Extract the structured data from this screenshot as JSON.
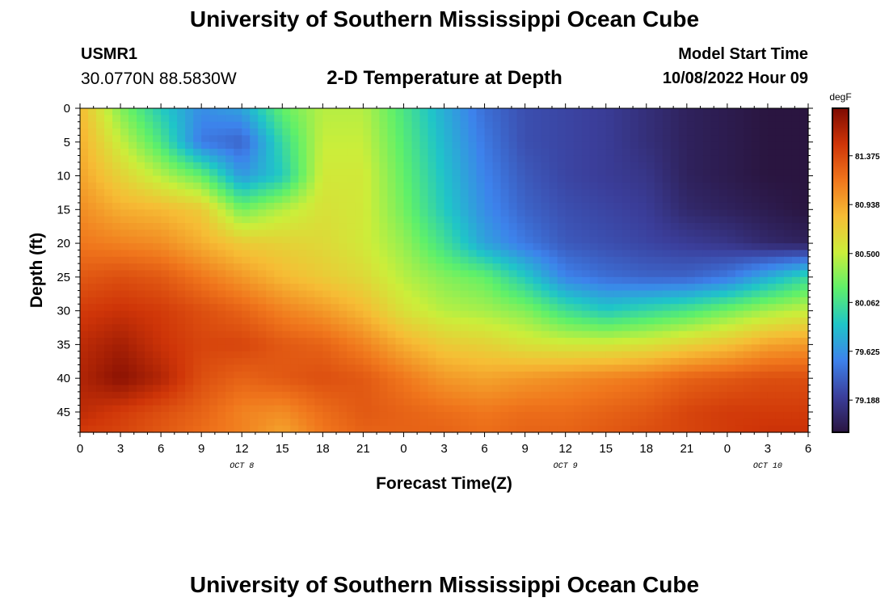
{
  "header": {
    "title": "University of Southern Mississippi Ocean Cube",
    "station_id": "USMR1",
    "station_coords": "30.0770N  88.5830W",
    "plot_title": "2-D Temperature at Depth",
    "model_start_label": "Model Start Time",
    "model_start_value": "10/08/2022 Hour 09"
  },
  "footer": {
    "title": "University of Southern Mississippi Ocean Cube"
  },
  "chart_data": {
    "type": "heatmap",
    "xlabel": "Forecast Time(Z)",
    "ylabel": "Depth (ft)",
    "xlim": [
      0,
      54
    ],
    "ylim": [
      0,
      48
    ],
    "y_inverted": true,
    "x_ticks": [
      "0",
      "3",
      "6",
      "9",
      "12",
      "15",
      "18",
      "21",
      "0",
      "3",
      "6",
      "9",
      "12",
      "15",
      "18",
      "21",
      "0",
      "3",
      "6"
    ],
    "x_date_labels": [
      {
        "label": "OCT 8",
        "at_hour": 12
      },
      {
        "label": "OCT 9",
        "at_hour": 36
      },
      {
        "label": "OCT 10",
        "at_hour": 51
      }
    ],
    "y_ticks": [
      0,
      5,
      10,
      15,
      20,
      25,
      30,
      35,
      40,
      45
    ],
    "colorbar": {
      "unit": "degF",
      "range": [
        78.9,
        81.8
      ],
      "ticks": [
        "81.375",
        "80.938",
        "80.500",
        "80.062",
        "79.625",
        "79.188"
      ],
      "colors": [
        "#2a1540",
        "#3b3f9c",
        "#3d82ec",
        "#1fc5c8",
        "#5ef06a",
        "#cbee3a",
        "#f6bd35",
        "#f0761c",
        "#cf3508",
        "#7e0b02"
      ]
    },
    "grid": false,
    "value_units": "degF",
    "hours": [
      0,
      3,
      6,
      9,
      12,
      15,
      18,
      21,
      24,
      27,
      30,
      33,
      36,
      39,
      42,
      45,
      48,
      51,
      54
    ],
    "depths": [
      0,
      5,
      10,
      15,
      20,
      25,
      30,
      35,
      40,
      45,
      48
    ],
    "values": [
      [
        80.85,
        80.3,
        79.9,
        79.6,
        79.7,
        80.2,
        80.45,
        80.45,
        80.1,
        79.75,
        79.45,
        79.3,
        79.25,
        79.2,
        79.1,
        79.0,
        78.95,
        78.9,
        78.9
      ],
      [
        80.9,
        80.5,
        80.1,
        79.5,
        79.4,
        80.0,
        80.5,
        80.5,
        80.15,
        79.8,
        79.5,
        79.3,
        79.25,
        79.2,
        79.1,
        79.0,
        78.95,
        78.9,
        78.9
      ],
      [
        80.95,
        80.7,
        80.45,
        80.2,
        79.65,
        79.9,
        80.55,
        80.55,
        80.2,
        79.85,
        79.55,
        79.35,
        79.25,
        79.2,
        79.15,
        79.0,
        78.95,
        78.9,
        78.9
      ],
      [
        81.05,
        80.9,
        80.85,
        80.75,
        80.25,
        80.45,
        80.6,
        80.55,
        80.25,
        79.9,
        79.6,
        79.4,
        79.3,
        79.25,
        79.2,
        79.05,
        79.0,
        78.95,
        78.9
      ],
      [
        81.15,
        81.1,
        81.05,
        80.9,
        80.75,
        80.7,
        80.65,
        80.55,
        80.35,
        80.05,
        79.7,
        79.5,
        79.35,
        79.3,
        79.25,
        79.2,
        79.15,
        79.05,
        79.0
      ],
      [
        81.3,
        81.35,
        81.3,
        81.15,
        81.0,
        80.85,
        80.75,
        80.65,
        80.45,
        80.3,
        80.2,
        79.9,
        79.55,
        79.45,
        79.4,
        79.4,
        79.5,
        79.75,
        80.0
      ],
      [
        81.45,
        81.5,
        81.45,
        81.35,
        81.25,
        81.1,
        81.0,
        80.85,
        80.6,
        80.45,
        80.4,
        80.3,
        80.05,
        79.9,
        80.0,
        80.1,
        80.25,
        80.4,
        80.5
      ],
      [
        81.55,
        81.65,
        81.5,
        81.4,
        81.4,
        81.3,
        81.25,
        81.1,
        80.9,
        80.75,
        80.7,
        80.6,
        80.55,
        80.55,
        80.6,
        80.7,
        80.8,
        80.95,
        81.0
      ],
      [
        81.6,
        81.75,
        81.6,
        81.35,
        81.25,
        81.3,
        81.35,
        81.3,
        81.15,
        81.0,
        80.95,
        81.0,
        81.05,
        81.1,
        81.15,
        81.25,
        81.3,
        81.35,
        81.35
      ],
      [
        81.55,
        81.45,
        81.35,
        81.25,
        81.1,
        81.05,
        81.2,
        81.3,
        81.25,
        81.2,
        81.15,
        81.2,
        81.2,
        81.25,
        81.3,
        81.4,
        81.45,
        81.45,
        81.45
      ],
      [
        81.45,
        81.4,
        81.3,
        81.2,
        81.1,
        80.95,
        81.15,
        81.25,
        81.25,
        81.25,
        81.2,
        81.25,
        81.25,
        81.3,
        81.35,
        81.4,
        81.45,
        81.5,
        81.5
      ]
    ]
  }
}
